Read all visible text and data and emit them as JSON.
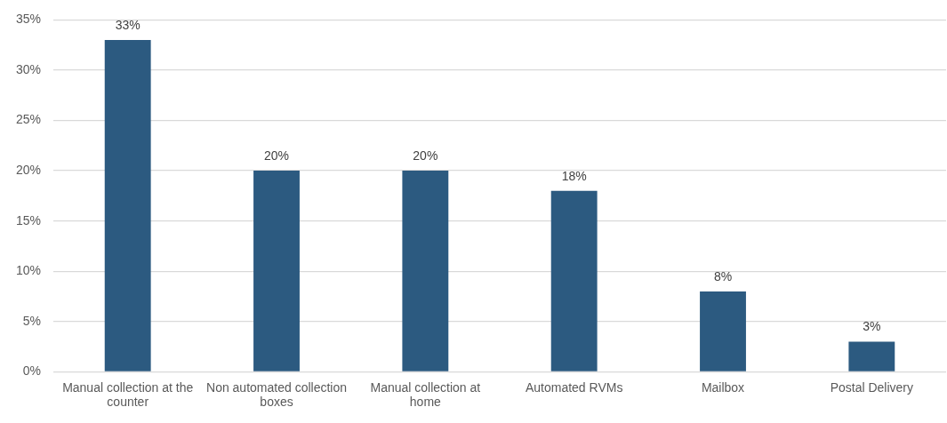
{
  "chart_data": {
    "type": "bar",
    "categories": [
      "Manual collection at the counter",
      "Non automated collection boxes",
      "Manual collection at home",
      "Automated RVMs",
      "Mailbox",
      "Postal Delivery"
    ],
    "values": [
      33,
      20,
      20,
      18,
      8,
      3
    ],
    "value_labels": [
      "33%",
      "20%",
      "20%",
      "18%",
      "8%",
      "3%"
    ],
    "color": "#2c5a80",
    "ylim": [
      0,
      35
    ],
    "yticks": [
      {
        "value": 0,
        "label": "0%"
      },
      {
        "value": 5,
        "label": "5%"
      },
      {
        "value": 10,
        "label": "10%"
      },
      {
        "value": 15,
        "label": "15%"
      },
      {
        "value": 20,
        "label": "20%"
      },
      {
        "value": 25,
        "label": "25%"
      },
      {
        "value": 30,
        "label": "30%"
      },
      {
        "value": 35,
        "label": "35%"
      }
    ],
    "grid": "y"
  }
}
